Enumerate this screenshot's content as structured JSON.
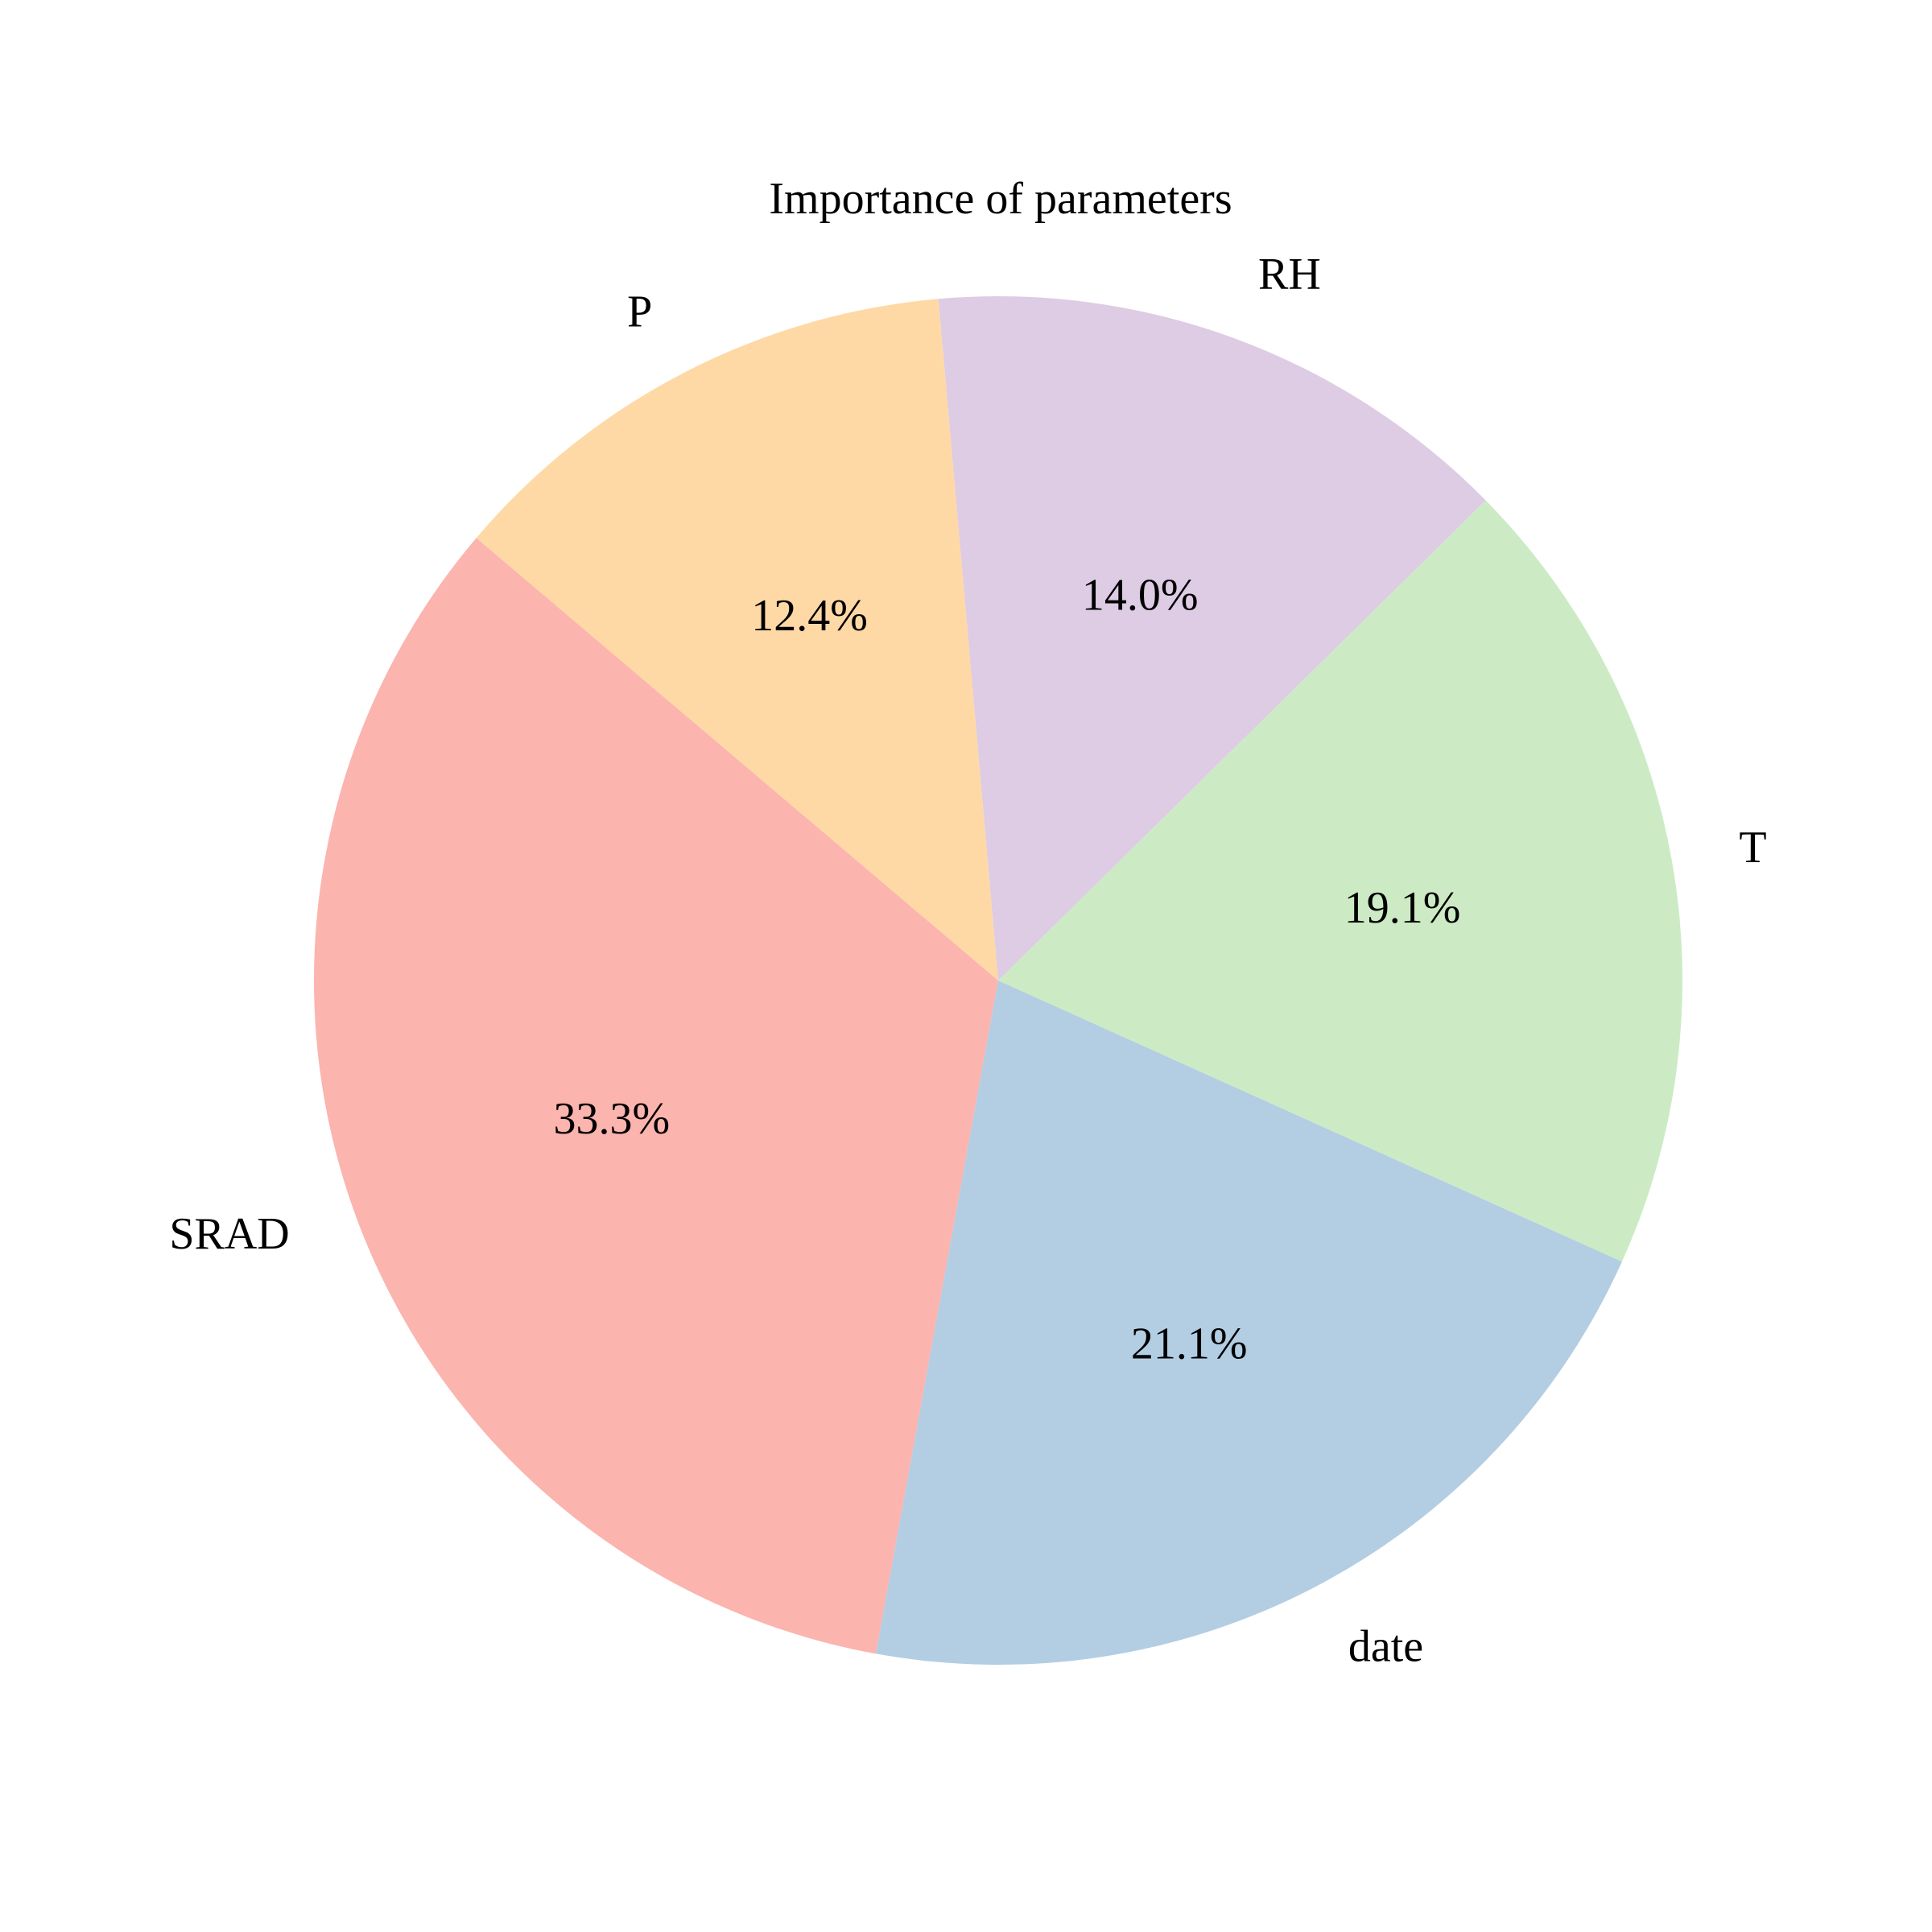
{
  "chart_data": {
    "type": "pie",
    "title": "Importance of parameters",
    "start_angle_deg": 139.7,
    "direction": "counterclockwise",
    "slices": [
      {
        "label": "SRAD",
        "value": 33.3,
        "pct_label": "33.3%",
        "color": "#fbb4ae"
      },
      {
        "label": "date",
        "value": 21.1,
        "pct_label": "21.1%",
        "color": "#b3cde3"
      },
      {
        "label": "T",
        "value": 19.1,
        "pct_label": "19.1%",
        "color": "#ccebc5"
      },
      {
        "label": "RH",
        "value": 14.0,
        "pct_label": "14.0%",
        "color": "#decbe4"
      },
      {
        "label": "P",
        "value": 12.4,
        "pct_label": "12.4%",
        "color": "#fed9a6"
      }
    ]
  }
}
